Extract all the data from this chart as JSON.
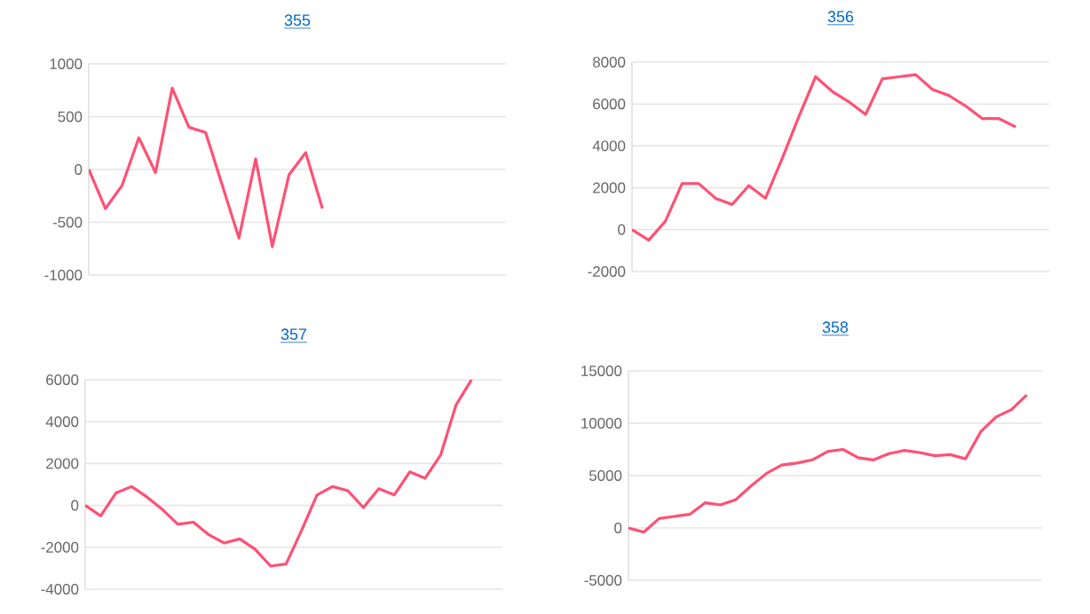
{
  "chart_data": [
    {
      "type": "line",
      "title": "355",
      "categories": [
        null,
        null,
        null,
        null,
        null,
        null,
        null,
        null,
        null,
        null,
        null,
        null,
        null,
        null,
        null,
        null,
        null,
        null,
        null,
        null,
        null,
        null,
        null,
        null,
        null,
        null
      ],
      "series": [
        {
          "color": "#ff5073",
          "values": [
            0,
            -370,
            -150,
            300,
            -30,
            770,
            400,
            350,
            -150,
            -650,
            100,
            -730,
            -50,
            160,
            -370,
            null,
            null,
            null,
            null,
            null,
            null,
            null,
            null,
            null,
            null,
            null
          ]
        }
      ],
      "ylim": [
        -1000,
        1000
      ],
      "yticks": [
        -1000,
        -500,
        0,
        500,
        1000
      ],
      "grid": "y",
      "tick_labels": "y",
      "marker": "none",
      "line_style": "solid"
    },
    {
      "type": "line",
      "title": "356",
      "categories": [
        null,
        null,
        null,
        null,
        null,
        null,
        null,
        null,
        null,
        null,
        null,
        null,
        null,
        null,
        null,
        null,
        null,
        null,
        null,
        null,
        null,
        null,
        null,
        null,
        null,
        null
      ],
      "series": [
        {
          "color": "#ff5073",
          "values": [
            0,
            -500,
            400,
            2200,
            2200,
            1500,
            1200,
            2100,
            1500,
            3400,
            5400,
            7300,
            6600,
            6100,
            5500,
            7200,
            7300,
            7400,
            6700,
            6400,
            5900,
            5300,
            5300,
            4900,
            null,
            null
          ]
        }
      ],
      "ylim": [
        -2000,
        8000
      ],
      "yticks": [
        -2000,
        0,
        2000,
        4000,
        6000,
        8000
      ],
      "grid": "y",
      "tick_labels": "y",
      "marker": "none",
      "line_style": "solid"
    },
    {
      "type": "line",
      "title": "357",
      "categories": [
        null,
        null,
        null,
        null,
        null,
        null,
        null,
        null,
        null,
        null,
        null,
        null,
        null,
        null,
        null,
        null,
        null,
        null,
        null,
        null,
        null,
        null,
        null,
        null,
        null,
        null,
        null,
        null
      ],
      "series": [
        {
          "color": "#ff5073",
          "values": [
            0,
            -500,
            600,
            900,
            400,
            -200,
            -900,
            -800,
            -1400,
            -1800,
            -1600,
            -2100,
            -2900,
            -2800,
            -1200,
            500,
            900,
            700,
            -100,
            800,
            500,
            1600,
            1300,
            2400,
            4800,
            6000,
            null,
            null
          ]
        }
      ],
      "ylim": [
        -4000,
        6000
      ],
      "yticks": [
        -4000,
        -2000,
        0,
        2000,
        4000,
        6000
      ],
      "grid": "y",
      "tick_labels": "y",
      "marker": "none",
      "line_style": "solid"
    },
    {
      "type": "line",
      "title": "358",
      "categories": [
        null,
        null,
        null,
        null,
        null,
        null,
        null,
        null,
        null,
        null,
        null,
        null,
        null,
        null,
        null,
        null,
        null,
        null,
        null,
        null,
        null,
        null,
        null,
        null,
        null,
        null,
        null,
        null
      ],
      "series": [
        {
          "color": "#ff5073",
          "values": [
            0,
            -400,
            900,
            1100,
            1300,
            2400,
            2200,
            2700,
            4000,
            5200,
            6000,
            6200,
            6500,
            7300,
            7500,
            6700,
            6500,
            7100,
            7400,
            7200,
            6900,
            7000,
            6600,
            9200,
            10600,
            11300,
            12700,
            null
          ]
        }
      ],
      "ylim": [
        -5000,
        15000
      ],
      "yticks": [
        -5000,
        0,
        5000,
        10000,
        15000
      ],
      "grid": "y",
      "tick_labels": "y",
      "marker": "none",
      "line_style": "solid"
    }
  ]
}
